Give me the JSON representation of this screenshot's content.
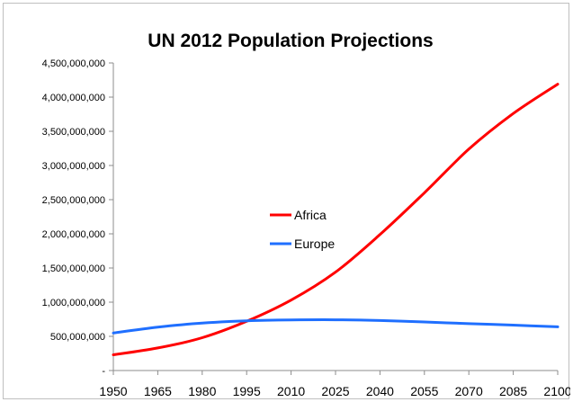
{
  "chart_data": {
    "type": "line",
    "title": "UN 2012 Population Projections",
    "xlabel": "",
    "ylabel": "",
    "x": [
      1950,
      1965,
      1980,
      1995,
      2010,
      2025,
      2040,
      2055,
      2070,
      2085,
      2100
    ],
    "x_tick_labels": [
      "1950",
      "1965",
      "1980",
      "1995",
      "2010",
      "2025",
      "2040",
      "2055",
      "2070",
      "2085",
      "2100"
    ],
    "y_tick_labels": [
      "-",
      "500,000,000",
      "1,000,000,000",
      "1,500,000,000",
      "2,000,000,000",
      "2,500,000,000",
      "3,000,000,000",
      "3,500,000,000",
      "4,000,000,000",
      "4,500,000,000"
    ],
    "ylim": [
      0,
      4500000000
    ],
    "grid": false,
    "legend_position": "center",
    "series": [
      {
        "name": "Africa",
        "color": "#ff0000",
        "values": [
          230000000,
          330000000,
          480000000,
          720000000,
          1030000000,
          1440000000,
          1990000000,
          2600000000,
          3240000000,
          3760000000,
          4190000000
        ]
      },
      {
        "name": "Europe",
        "color": "#1f6fff",
        "values": [
          549000000,
          634000000,
          694000000,
          728000000,
          740000000,
          742000000,
          731000000,
          710000000,
          686000000,
          664000000,
          639000000
        ]
      }
    ]
  }
}
